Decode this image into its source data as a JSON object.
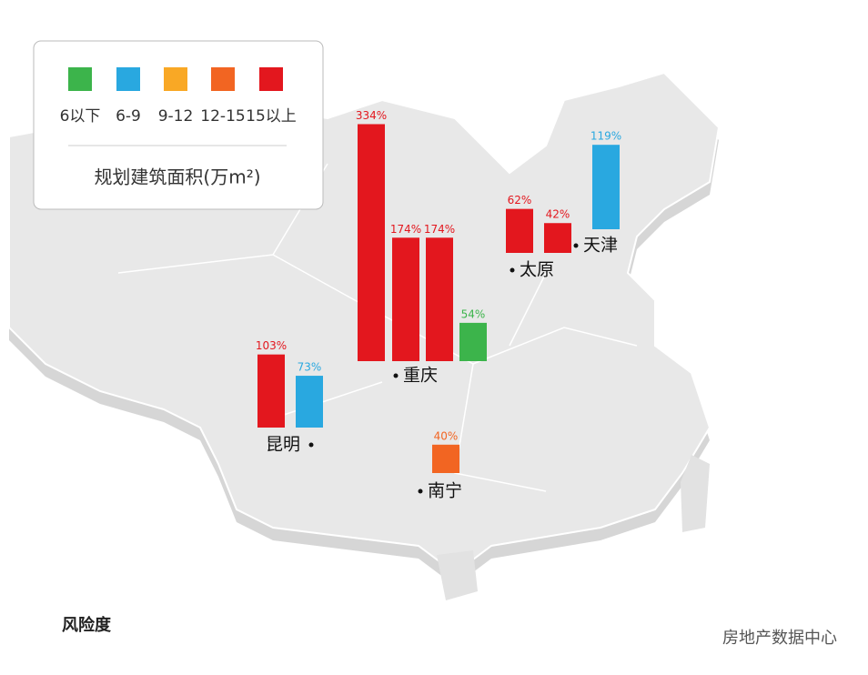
{
  "chart_data": {
    "type": "map-bar",
    "legend": {
      "title": "规划建筑面积(万m²)",
      "items": [
        {
          "label": "6以下",
          "color": "#3cb44b"
        },
        {
          "label": "6-9",
          "color": "#29a8e0"
        },
        {
          "label": "9-12",
          "color": "#f9a825"
        },
        {
          "label": "12-15",
          "color": "#f26522"
        },
        {
          "label": "15以上",
          "color": "#e3171e"
        }
      ]
    },
    "cities": [
      {
        "name": "昆明",
        "values": [
          103,
          73
        ],
        "value_labels": [
          "103%",
          "73%"
        ],
        "colors": [
          "#e3171e",
          "#29a8e0"
        ]
      },
      {
        "name": "重庆",
        "values": [
          334,
          174,
          174,
          54
        ],
        "value_labels": [
          "334%",
          "174%",
          "174%",
          "54%"
        ],
        "colors": [
          "#e3171e",
          "#e3171e",
          "#e3171e",
          "#3cb44b"
        ]
      },
      {
        "name": "南宁",
        "values": [
          40
        ],
        "value_labels": [
          "40%"
        ],
        "colors": [
          "#f26522"
        ]
      },
      {
        "name": "太原",
        "values": [
          62,
          42
        ],
        "value_labels": [
          "62%",
          "42%"
        ],
        "colors": [
          "#e3171e",
          "#e3171e"
        ]
      },
      {
        "name": "天津",
        "values": [
          119
        ],
        "value_labels": [
          "119%"
        ],
        "colors": [
          "#29a8e0"
        ]
      }
    ],
    "footer": "风险度",
    "watermark": "房地产数据中心"
  }
}
